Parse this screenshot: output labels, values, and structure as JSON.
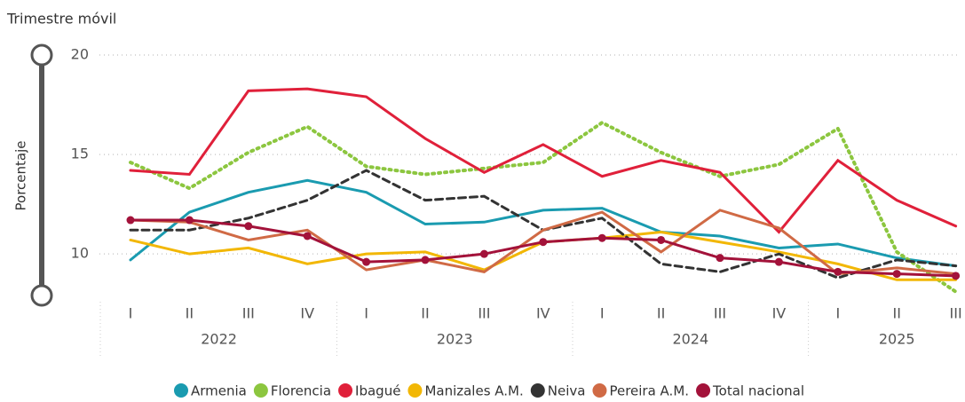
{
  "chart_data": {
    "type": "line",
    "title": "Trimestre móvil",
    "y_label": "Porcentaje",
    "categories": [
      "I",
      "II",
      "III",
      "IV",
      "I",
      "II",
      "III",
      "IV",
      "I",
      "II",
      "III",
      "IV",
      "I",
      "II",
      "III"
    ],
    "category_years": [
      "2022",
      "2022",
      "2022",
      "2022",
      "2023",
      "2023",
      "2023",
      "2023",
      "2024",
      "2024",
      "2024",
      "2024",
      "2025",
      "2025",
      "2025"
    ],
    "ylim": [
      8,
      20
    ],
    "yticks": [
      10,
      15,
      20
    ],
    "grid": true,
    "legend": "bottom",
    "series": [
      {
        "name": "Armenia",
        "color": "#1a9bb0",
        "style": "solid",
        "markers": false,
        "values": [
          9.7,
          12.1,
          13.1,
          13.7,
          13.1,
          11.5,
          11.6,
          12.2,
          12.3,
          11.1,
          10.9,
          10.3,
          10.5,
          9.8,
          9.4
        ]
      },
      {
        "name": "Florencia",
        "color": "#8cc63f",
        "style": "dotted",
        "markers": false,
        "values": [
          14.6,
          13.3,
          15.1,
          16.4,
          14.4,
          14.0,
          14.3,
          14.6,
          16.6,
          15.1,
          13.9,
          14.5,
          16.3,
          10.1,
          8.1
        ]
      },
      {
        "name": "Ibagué",
        "color": "#e0203a",
        "style": "solid",
        "markers": false,
        "values": [
          14.2,
          14.0,
          18.2,
          18.3,
          17.9,
          15.8,
          14.1,
          15.5,
          13.9,
          14.7,
          14.1,
          11.1,
          14.7,
          12.7,
          11.4
        ]
      },
      {
        "name": "Manizales A.M.",
        "color": "#f2b705",
        "style": "solid",
        "markers": false,
        "values": [
          10.7,
          10.0,
          10.3,
          9.5,
          10.0,
          10.1,
          9.2,
          10.6,
          10.8,
          11.1,
          10.6,
          10.1,
          9.5,
          8.7,
          8.7
        ]
      },
      {
        "name": "Neiva",
        "color": "#333333",
        "style": "dashed",
        "markers": false,
        "values": [
          11.2,
          11.2,
          11.8,
          12.7,
          14.2,
          12.7,
          12.9,
          11.2,
          11.8,
          9.5,
          9.1,
          10.0,
          8.8,
          9.7,
          9.4
        ]
      },
      {
        "name": "Pereira A.M.",
        "color": "#d06a45",
        "style": "solid",
        "markers": false,
        "values": [
          11.7,
          11.6,
          10.7,
          11.2,
          9.2,
          9.7,
          9.1,
          11.2,
          12.1,
          10.1,
          12.2,
          11.3,
          9.0,
          9.3,
          9.0
        ]
      },
      {
        "name": "Total nacional",
        "color": "#a3123a",
        "style": "solid",
        "markers": true,
        "values": [
          11.7,
          11.7,
          11.4,
          10.9,
          9.6,
          9.7,
          10.0,
          10.6,
          10.8,
          10.7,
          9.8,
          9.6,
          9.1,
          9.0,
          8.9
        ]
      }
    ]
  }
}
